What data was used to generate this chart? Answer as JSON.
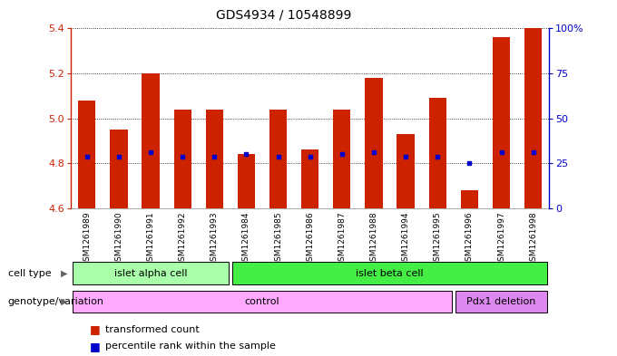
{
  "title": "GDS4934 / 10548899",
  "samples": [
    "GSM1261989",
    "GSM1261990",
    "GSM1261991",
    "GSM1261992",
    "GSM1261993",
    "GSM1261984",
    "GSM1261985",
    "GSM1261986",
    "GSM1261987",
    "GSM1261988",
    "GSM1261994",
    "GSM1261995",
    "GSM1261996",
    "GSM1261997",
    "GSM1261998"
  ],
  "bar_values": [
    5.08,
    4.95,
    5.2,
    5.04,
    5.04,
    4.84,
    5.04,
    4.86,
    5.04,
    5.18,
    4.93,
    5.09,
    4.68,
    5.36,
    5.4
  ],
  "blue_dot_values": [
    4.83,
    4.83,
    4.85,
    4.83,
    4.83,
    4.84,
    4.83,
    4.83,
    4.84,
    4.85,
    4.83,
    4.83,
    4.8,
    4.85,
    4.85
  ],
  "ylim": [
    4.6,
    5.4
  ],
  "yticks": [
    4.6,
    4.8,
    5.0,
    5.2,
    5.4
  ],
  "right_yticks": [
    0,
    25,
    50,
    75,
    100
  ],
  "right_ytick_labels": [
    "0",
    "25",
    "50",
    "75",
    "100%"
  ],
  "bar_color": "#cc2200",
  "dot_color": "#0000cc",
  "bar_width": 0.55,
  "cell_type_groups": [
    {
      "label": "islet alpha cell",
      "start": 0,
      "end": 4,
      "color": "#aaffaa"
    },
    {
      "label": "islet beta cell",
      "start": 5,
      "end": 14,
      "color": "#44ee44"
    }
  ],
  "genotype_groups": [
    {
      "label": "control",
      "start": 0,
      "end": 11,
      "color": "#ffaaff"
    },
    {
      "label": "Pdx1 deletion",
      "start": 12,
      "end": 14,
      "color": "#dd88ee"
    }
  ],
  "legend_items": [
    {
      "color": "#cc2200",
      "label": "transformed count"
    },
    {
      "color": "#0000cc",
      "label": "percentile rank within the sample"
    }
  ],
  "plot_bg": "#ffffff",
  "fig_bg": "#ffffff",
  "xtick_bg": "#cccccc",
  "grid_color": "#000000",
  "cell_type_label": "cell type",
  "genotype_label": "genotype/variation"
}
